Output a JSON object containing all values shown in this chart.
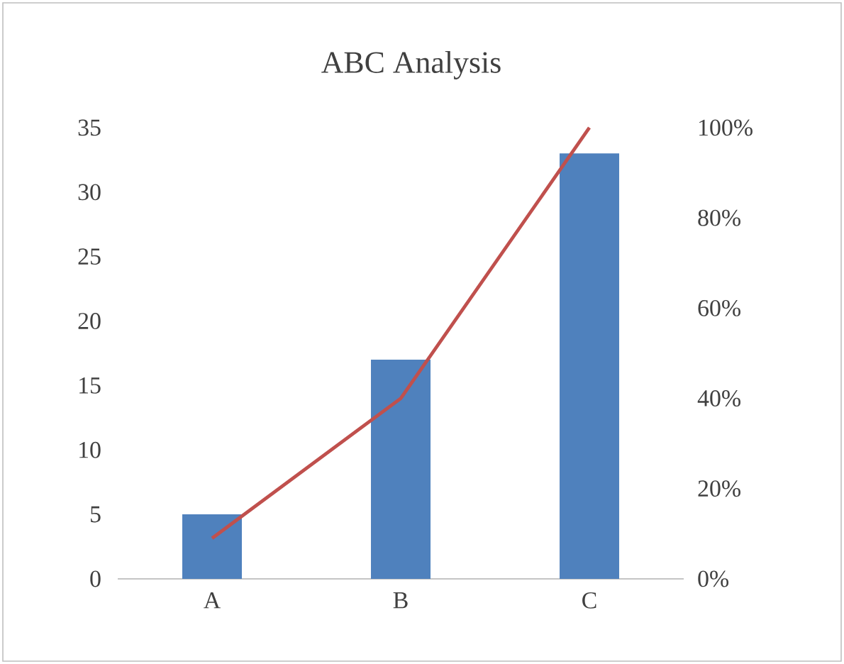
{
  "chart_data": {
    "type": "bar",
    "title": "ABC Analysis",
    "categories": [
      "A",
      "B",
      "C"
    ],
    "series": [
      {
        "color": "#4f81bd",
        "values": [
          5,
          17,
          33
        ]
      },
      {
        "type": "line",
        "axis": "y2",
        "color": "#c0504d",
        "values": [
          9,
          40,
          100
        ]
      }
    ],
    "ylim": [
      0,
      35
    ],
    "yticks": [
      0,
      5,
      10,
      15,
      20,
      25,
      30,
      35
    ],
    "y2lim": [
      0,
      100
    ],
    "y2ticks": [
      {
        "value": 0,
        "label": "0%"
      },
      {
        "value": 20,
        "label": "20%"
      },
      {
        "value": 40,
        "label": "40%"
      },
      {
        "value": 60,
        "label": "60%"
      },
      {
        "value": 80,
        "label": "80%"
      },
      {
        "value": 100,
        "label": "100%"
      }
    ]
  }
}
